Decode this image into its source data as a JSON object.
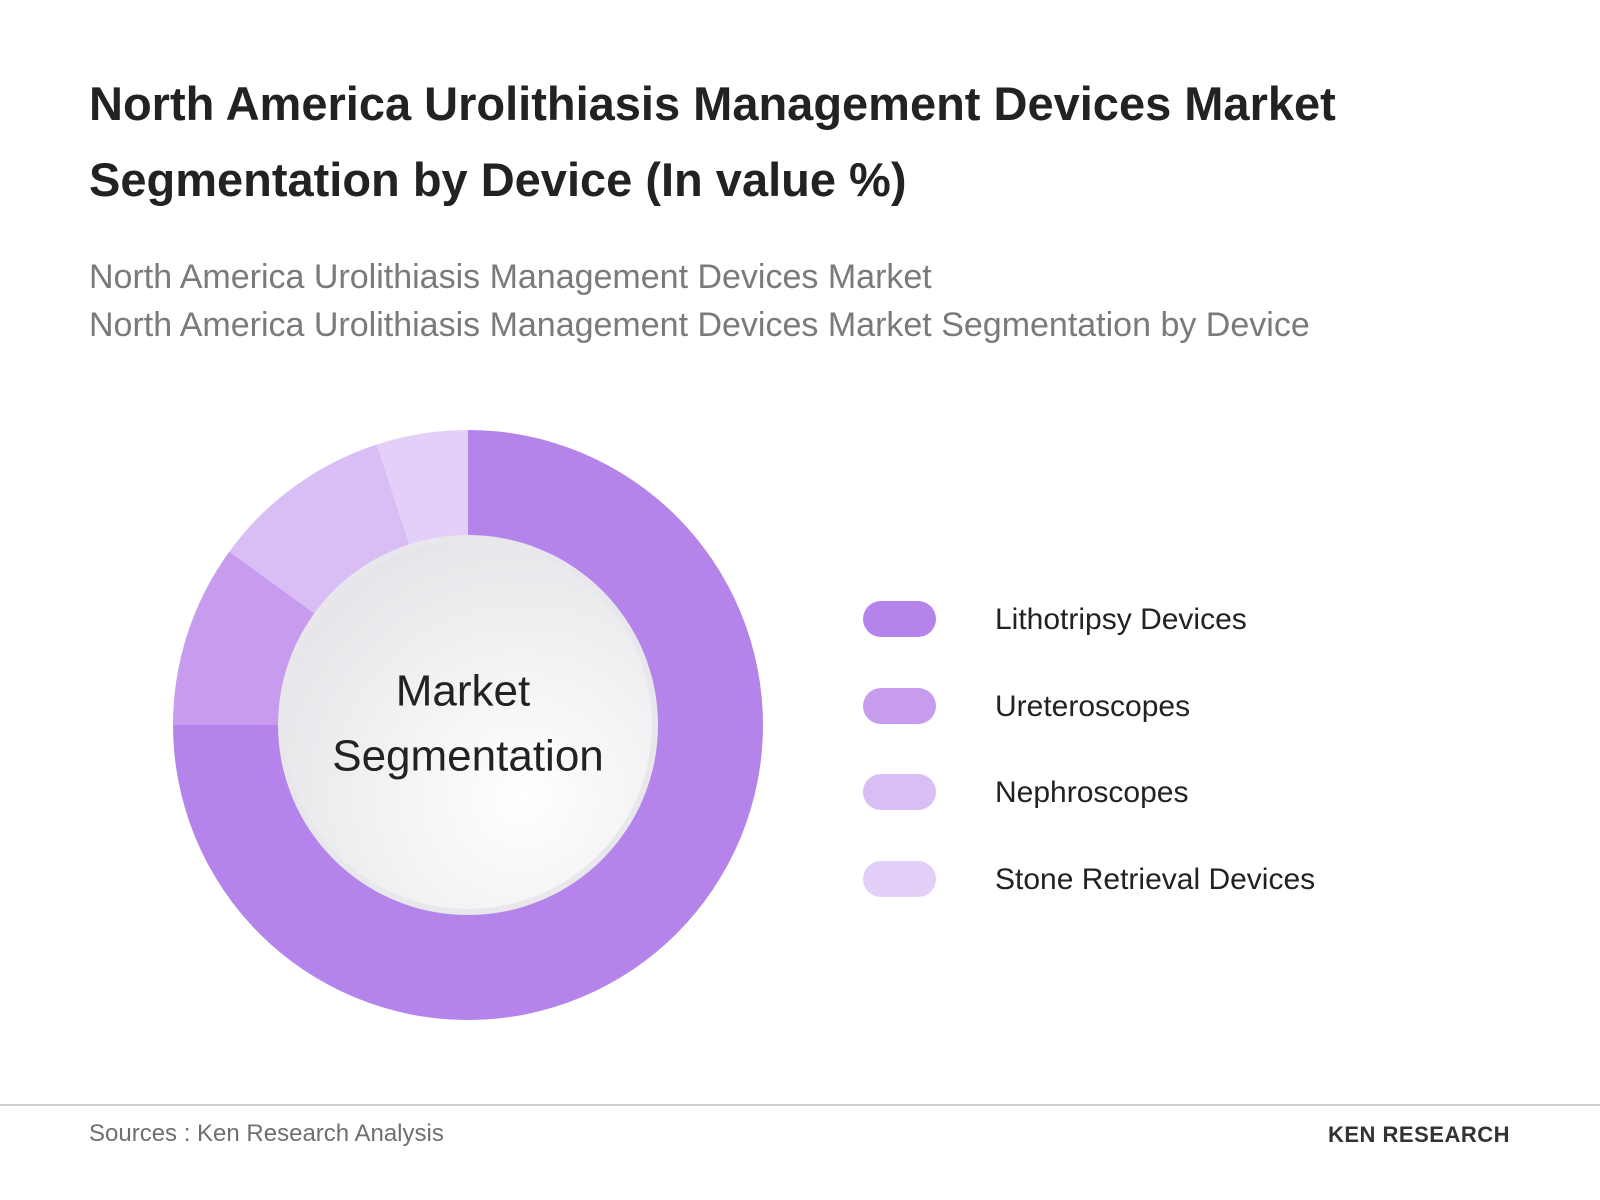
{
  "header": {
    "title": "North America Urolithiasis Management Devices Market Segmentation by Device (In value %)",
    "subtitle": [
      "North America Urolithiasis Management Devices Market",
      "North America Urolithiasis Management Devices Market Segmentation by Device"
    ]
  },
  "chart_data": {
    "type": "donut",
    "categories": [
      "Lithotripsy Devices",
      "Ureteroscopes",
      "Nephroscopes",
      "Stone Retrieval Devices"
    ],
    "values": [
      75,
      10,
      10,
      5
    ],
    "colors": [
      "#b484ea",
      "#c79cee",
      "#d9bdf5",
      "#e3cff7"
    ],
    "center_label": [
      "Market",
      "Segmentation"
    ]
  },
  "footer": {
    "source": "Sources : Ken Research Analysis",
    "logo": "KEN RESEARCH"
  }
}
